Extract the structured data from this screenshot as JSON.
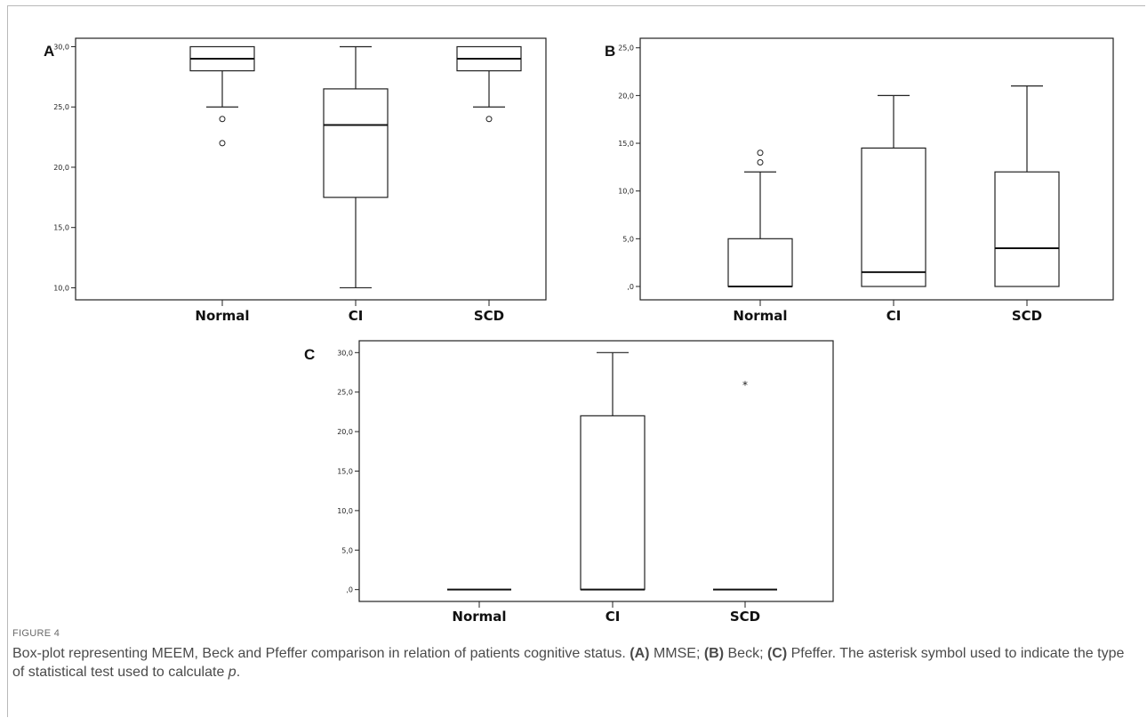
{
  "figure": {
    "label": "FIGURE 4",
    "caption": {
      "part1": "Box-plot representing MEEM, Beck and Pfeffer comparison in relation of patients cognitive status. ",
      "a": "(A)",
      "part2": " MMSE; ",
      "b": "(B)",
      "part3": " Beck; ",
      "c": "(C)",
      "part4": " Pfeffer. The asterisk symbol used to indicate the type of statistical test used to calculate ",
      "p": "p",
      "part5": "."
    }
  },
  "chart_data": [
    {
      "type": "box",
      "panel": "A",
      "categories": [
        "Normal",
        "CI",
        "SCD"
      ],
      "ylim": [
        9.0,
        30.7
      ],
      "yticks": [
        10,
        15,
        20,
        25,
        30
      ],
      "ytick_labels": [
        "10,0",
        "15,0",
        "20,0",
        "25,0",
        "30,0"
      ],
      "boxes": [
        {
          "min": 25,
          "q1": 28,
          "median": 29,
          "q3": 30,
          "max": 30,
          "outliers": [
            24,
            22
          ],
          "extremes": []
        },
        {
          "min": 10,
          "q1": 17.5,
          "median": 23.5,
          "q3": 26.5,
          "max": 30,
          "outliers": [],
          "extremes": []
        },
        {
          "min": 25,
          "q1": 28,
          "median": 29,
          "q3": 30,
          "max": 30,
          "outliers": [
            24
          ],
          "extremes": []
        }
      ]
    },
    {
      "type": "box",
      "panel": "B",
      "categories": [
        "Normal",
        "CI",
        "SCD"
      ],
      "ylim": [
        -1.4,
        26.0
      ],
      "yticks": [
        0,
        5,
        10,
        15,
        20,
        25
      ],
      "ytick_labels": [
        ",0",
        "5,0",
        "10,0",
        "15,0",
        "20,0",
        "25,0"
      ],
      "boxes": [
        {
          "min": 0,
          "q1": 0,
          "median": 0,
          "q3": 5,
          "max": 12,
          "outliers": [
            13,
            14
          ],
          "extremes": []
        },
        {
          "min": 0,
          "q1": 0,
          "median": 1.5,
          "q3": 14.5,
          "max": 20,
          "outliers": [],
          "extremes": []
        },
        {
          "min": 0,
          "q1": 0,
          "median": 4,
          "q3": 12,
          "max": 21,
          "outliers": [],
          "extremes": []
        }
      ]
    },
    {
      "type": "box",
      "panel": "C",
      "categories": [
        "Normal",
        "CI",
        "SCD"
      ],
      "ylim": [
        -1.5,
        31.5
      ],
      "yticks": [
        0,
        5,
        10,
        15,
        20,
        25,
        30
      ],
      "ytick_labels": [
        ",0",
        "5,0",
        "10,0",
        "15,0",
        "20,0",
        "25,0",
        "30,0"
      ],
      "boxes": [
        {
          "min": 0,
          "q1": 0,
          "median": 0,
          "q3": 0,
          "max": 0,
          "outliers": [],
          "extremes": []
        },
        {
          "min": 0,
          "q1": 0,
          "median": 0,
          "q3": 22,
          "max": 30,
          "outliers": [],
          "extremes": []
        },
        {
          "min": 0,
          "q1": 0,
          "median": 0,
          "q3": 0,
          "max": 0,
          "outliers": [],
          "extremes": [
            26
          ]
        }
      ]
    }
  ]
}
